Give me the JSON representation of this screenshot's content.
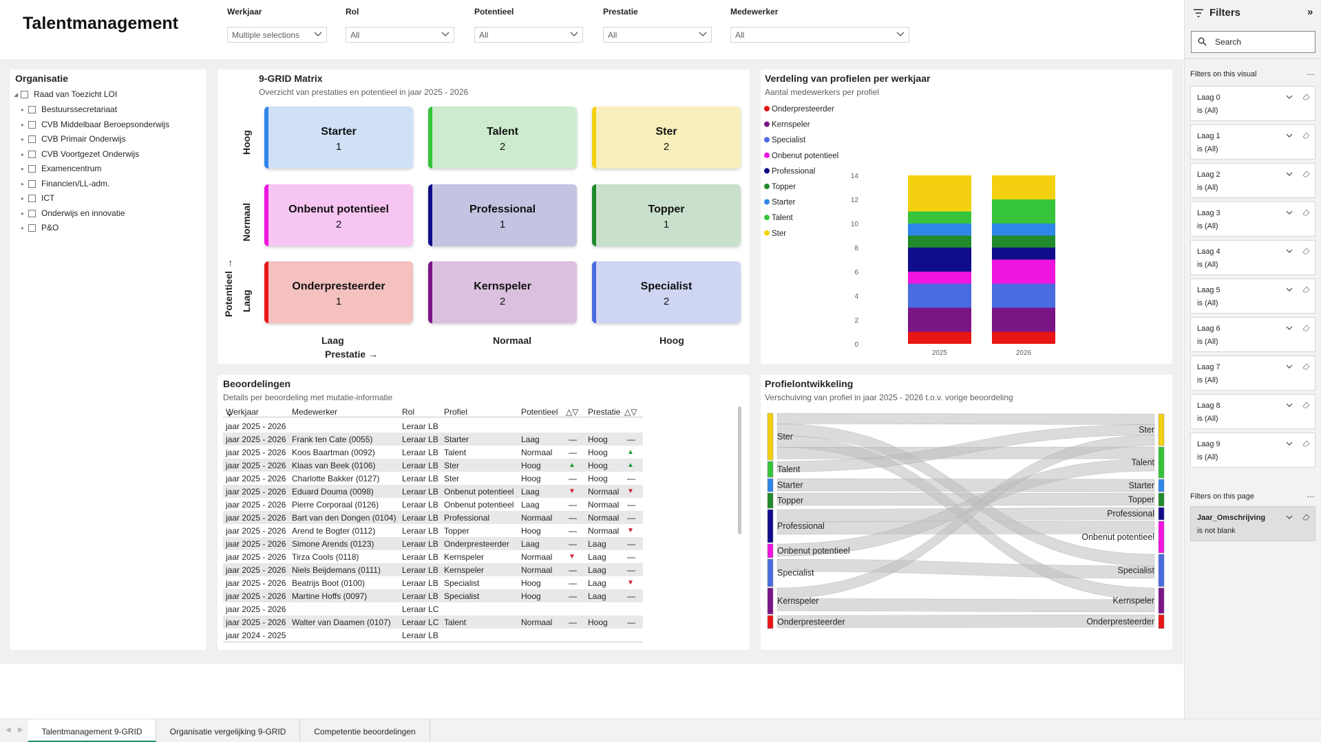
{
  "page": {
    "title": "Talentmanagement"
  },
  "slicers": [
    {
      "label": "Werkjaar",
      "value": "Multiple selections"
    },
    {
      "label": "Rol",
      "value": "All"
    },
    {
      "label": "Potentieel",
      "value": "All"
    },
    {
      "label": "Prestatie",
      "value": "All"
    },
    {
      "label": "Medewerker",
      "value": "All"
    }
  ],
  "organisatie": {
    "title": "Organisatie",
    "items": [
      "Raad van Toezicht LOI",
      "Bestuurssecretariaat",
      "CVB Middelbaar Beroepsonderwijs",
      "CVB Primair Onderwijs",
      "CVB Voortgezet Onderwijs",
      "Examencentrum",
      "Financien/LL-adm.",
      "ICT",
      "Onderwijs en innovatie",
      "P&O"
    ]
  },
  "grid": {
    "title": "9-GRID Matrix",
    "subtitle": "Overzicht van prestaties en potentieel in jaar 2025 - 2026",
    "potentieel_label": "Potentieel →",
    "prestatie_label": "Prestatie →",
    "rows": [
      "Hoog",
      "Normaal",
      "Laag"
    ],
    "cols": [
      "Laag",
      "Normaal",
      "Hoog"
    ],
    "cells": [
      {
        "name": "Starter",
        "count": "1",
        "bg": "#cfe0f7",
        "accent": "#2f86e8"
      },
      {
        "name": "Talent",
        "count": "2",
        "bg": "#cdebcf",
        "accent": "#36c43a"
      },
      {
        "name": "Ster",
        "count": "2",
        "bg": "#f8efbc",
        "accent": "#f4d110"
      },
      {
        "name": "Onbenut potentieel",
        "count": "2",
        "bg": "#f7c5f2",
        "accent": "#f014e0"
      },
      {
        "name": "Professional",
        "count": "1",
        "bg": "#c3c4e2",
        "accent": "#100c8a"
      },
      {
        "name": "Topper",
        "count": "1",
        "bg": "#c9e1cc",
        "accent": "#208a2c"
      },
      {
        "name": "Onderpresteerder",
        "count": "1",
        "bg": "#f5c0c0",
        "accent": "#e81515"
      },
      {
        "name": "Kernspeler",
        "count": "2",
        "bg": "#dcc0df",
        "accent": "#7a1586"
      },
      {
        "name": "Specialist",
        "count": "2",
        "bg": "#cfd6f4",
        "accent": "#4b6be0"
      }
    ]
  },
  "chart_data": {
    "type": "bar",
    "stacked": true,
    "title": "Verdeling van profielen per werkjaar",
    "subtitle": "Aantal medewerkers per profiel",
    "categories": [
      "2025",
      "2026"
    ],
    "ylim": [
      0,
      14
    ],
    "yticks": [
      "0",
      "2",
      "4",
      "6",
      "8",
      "10",
      "12",
      "14"
    ],
    "legend_position": "left",
    "series": [
      {
        "name": "Onderpresteerder",
        "color": "#e81515",
        "values": [
          1,
          1
        ]
      },
      {
        "name": "Kernspeler",
        "color": "#7a1586",
        "values": [
          2,
          2
        ]
      },
      {
        "name": "Specialist",
        "color": "#4b6be0",
        "values": [
          2,
          2
        ]
      },
      {
        "name": "Onbenut potentieel",
        "color": "#f014e0",
        "values": [
          1,
          2
        ]
      },
      {
        "name": "Professional",
        "color": "#100c8a",
        "values": [
          2,
          1
        ]
      },
      {
        "name": "Topper",
        "color": "#208a2c",
        "values": [
          1,
          1
        ]
      },
      {
        "name": "Starter",
        "color": "#2f86e8",
        "values": [
          1,
          1
        ]
      },
      {
        "name": "Talent",
        "color": "#36c43a",
        "values": [
          1,
          2
        ]
      },
      {
        "name": "Ster",
        "color": "#f4d110",
        "values": [
          3,
          2
        ]
      }
    ]
  },
  "beoordelingen": {
    "title": "Beoordelingen",
    "subtitle": "Details per beoordeling met mutatie-informatie",
    "headers": [
      "Werkjaar",
      "Medewerker",
      "Rol",
      "Profiel",
      "Potentieel",
      "△▽",
      "Prestatie",
      "△▽"
    ],
    "rows": [
      [
        "jaar 2025 - 2026",
        "",
        "Leraar LB",
        "",
        "",
        "",
        "",
        ""
      ],
      [
        "jaar 2025 - 2026",
        "Frank ten Cate (0055)",
        "Leraar LB",
        "Starter",
        "Laag",
        "dash",
        "Hoog",
        "dash"
      ],
      [
        "jaar 2025 - 2026",
        "Koos Baartman (0092)",
        "Leraar LB",
        "Talent",
        "Normaal",
        "dash",
        "Hoog",
        "up"
      ],
      [
        "jaar 2025 - 2026",
        "Klaas van Beek (0106)",
        "Leraar LB",
        "Ster",
        "Hoog",
        "up",
        "Hoog",
        "up"
      ],
      [
        "jaar 2025 - 2026",
        "Charlotte Bakker (0127)",
        "Leraar LB",
        "Ster",
        "Hoog",
        "dash",
        "Hoog",
        "dash"
      ],
      [
        "jaar 2025 - 2026",
        "Eduard Douma (0098)",
        "Leraar LB",
        "Onbenut potentieel",
        "Laag",
        "down",
        "Normaal",
        "down"
      ],
      [
        "jaar 2025 - 2026",
        "Pierre Corporaal (0126)",
        "Leraar LB",
        "Onbenut potentieel",
        "Laag",
        "dash",
        "Normaal",
        "dash"
      ],
      [
        "jaar 2025 - 2026",
        "Bart van den Dongen (0104)",
        "Leraar LB",
        "Professional",
        "Normaal",
        "dash",
        "Normaal",
        "dash"
      ],
      [
        "jaar 2025 - 2026",
        "Arend te Bogter (0112)",
        "Leraar LB",
        "Topper",
        "Hoog",
        "dash",
        "Normaal",
        "down"
      ],
      [
        "jaar 2025 - 2026",
        "Simone Arends (0123)",
        "Leraar LB",
        "Onderpresteerder",
        "Laag",
        "dash",
        "Laag",
        "dash"
      ],
      [
        "jaar 2025 - 2026",
        "Tirza Cools (0118)",
        "Leraar LB",
        "Kernspeler",
        "Normaal",
        "down",
        "Laag",
        "dash"
      ],
      [
        "jaar 2025 - 2026",
        "Niels Beijdemans (0111)",
        "Leraar LB",
        "Kernspeler",
        "Normaal",
        "dash",
        "Laag",
        "dash"
      ],
      [
        "jaar 2025 - 2026",
        "Beatrijs Boot (0100)",
        "Leraar LB",
        "Specialist",
        "Hoog",
        "dash",
        "Laag",
        "down"
      ],
      [
        "jaar 2025 - 2026",
        "Martine Hoffs (0097)",
        "Leraar LB",
        "Specialist",
        "Hoog",
        "dash",
        "Laag",
        "dash"
      ],
      [
        "jaar 2025 - 2026",
        "",
        "Leraar LC",
        "",
        "",
        "",
        "",
        ""
      ],
      [
        "jaar 2025 - 2026",
        "Walter van Daamen (0107)",
        "Leraar LC",
        "Talent",
        "Normaal",
        "dash",
        "Hoog",
        "dash"
      ],
      [
        "jaar 2024 - 2025",
        "",
        "Leraar LB",
        "",
        "",
        "",
        "",
        ""
      ]
    ]
  },
  "sankey": {
    "title": "Profielontwikkeling",
    "subtitle": "Verschuiving van profiel in jaar 2025 - 2026 t.o.v. vorige beoordeling",
    "left": [
      {
        "name": "Ster",
        "color": "#f4d110"
      },
      {
        "name": "Talent",
        "color": "#36c43a"
      },
      {
        "name": "Starter",
        "color": "#2f86e8"
      },
      {
        "name": "Topper",
        "color": "#208a2c"
      },
      {
        "name": "Professional",
        "color": "#100c8a"
      },
      {
        "name": "Onbenut potentieel",
        "color": "#f014e0"
      },
      {
        "name": "Specialist",
        "color": "#4b6be0"
      },
      {
        "name": "Kernspeler",
        "color": "#7a1586"
      },
      {
        "name": "Onderpresteerder",
        "color": "#e81515"
      }
    ],
    "right": [
      {
        "name": "Ster",
        "color": "#f4d110"
      },
      {
        "name": "Talent",
        "color": "#36c43a"
      },
      {
        "name": "Starter",
        "color": "#2f86e8"
      },
      {
        "name": "Topper",
        "color": "#208a2c"
      },
      {
        "name": "Professional",
        "color": "#100c8a"
      },
      {
        "name": "Onbenut potentieel",
        "color": "#f014e0"
      },
      {
        "name": "Specialist",
        "color": "#4b6be0"
      },
      {
        "name": "Kernspeler",
        "color": "#7a1586"
      },
      {
        "name": "Onderpresteerder",
        "color": "#e81515"
      }
    ]
  },
  "filters": {
    "title": "Filters",
    "search_placeholder": "Search",
    "visual_section": "Filters on this visual",
    "visual_filters": [
      {
        "name": "Laag 0",
        "value": "is (All)"
      },
      {
        "name": "Laag 1",
        "value": "is (All)"
      },
      {
        "name": "Laag 2",
        "value": "is (All)"
      },
      {
        "name": "Laag 3",
        "value": "is (All)"
      },
      {
        "name": "Laag 4",
        "value": "is (All)"
      },
      {
        "name": "Laag 5",
        "value": "is (All)"
      },
      {
        "name": "Laag 6",
        "value": "is (All)"
      },
      {
        "name": "Laag 7",
        "value": "is (All)"
      },
      {
        "name": "Laag 8",
        "value": "is (All)"
      },
      {
        "name": "Laag 9",
        "value": "is (All)"
      }
    ],
    "page_section": "Filters on this page",
    "page_filters": [
      {
        "name": "Jaar_Omschrijving",
        "value": "is not blank"
      }
    ]
  },
  "tabs": [
    {
      "label": "Talentmanagement 9-GRID",
      "active": true
    },
    {
      "label": "Organisatie vergelijking 9-GRID",
      "active": false
    },
    {
      "label": "Competentie beoordelingen",
      "active": false
    }
  ]
}
